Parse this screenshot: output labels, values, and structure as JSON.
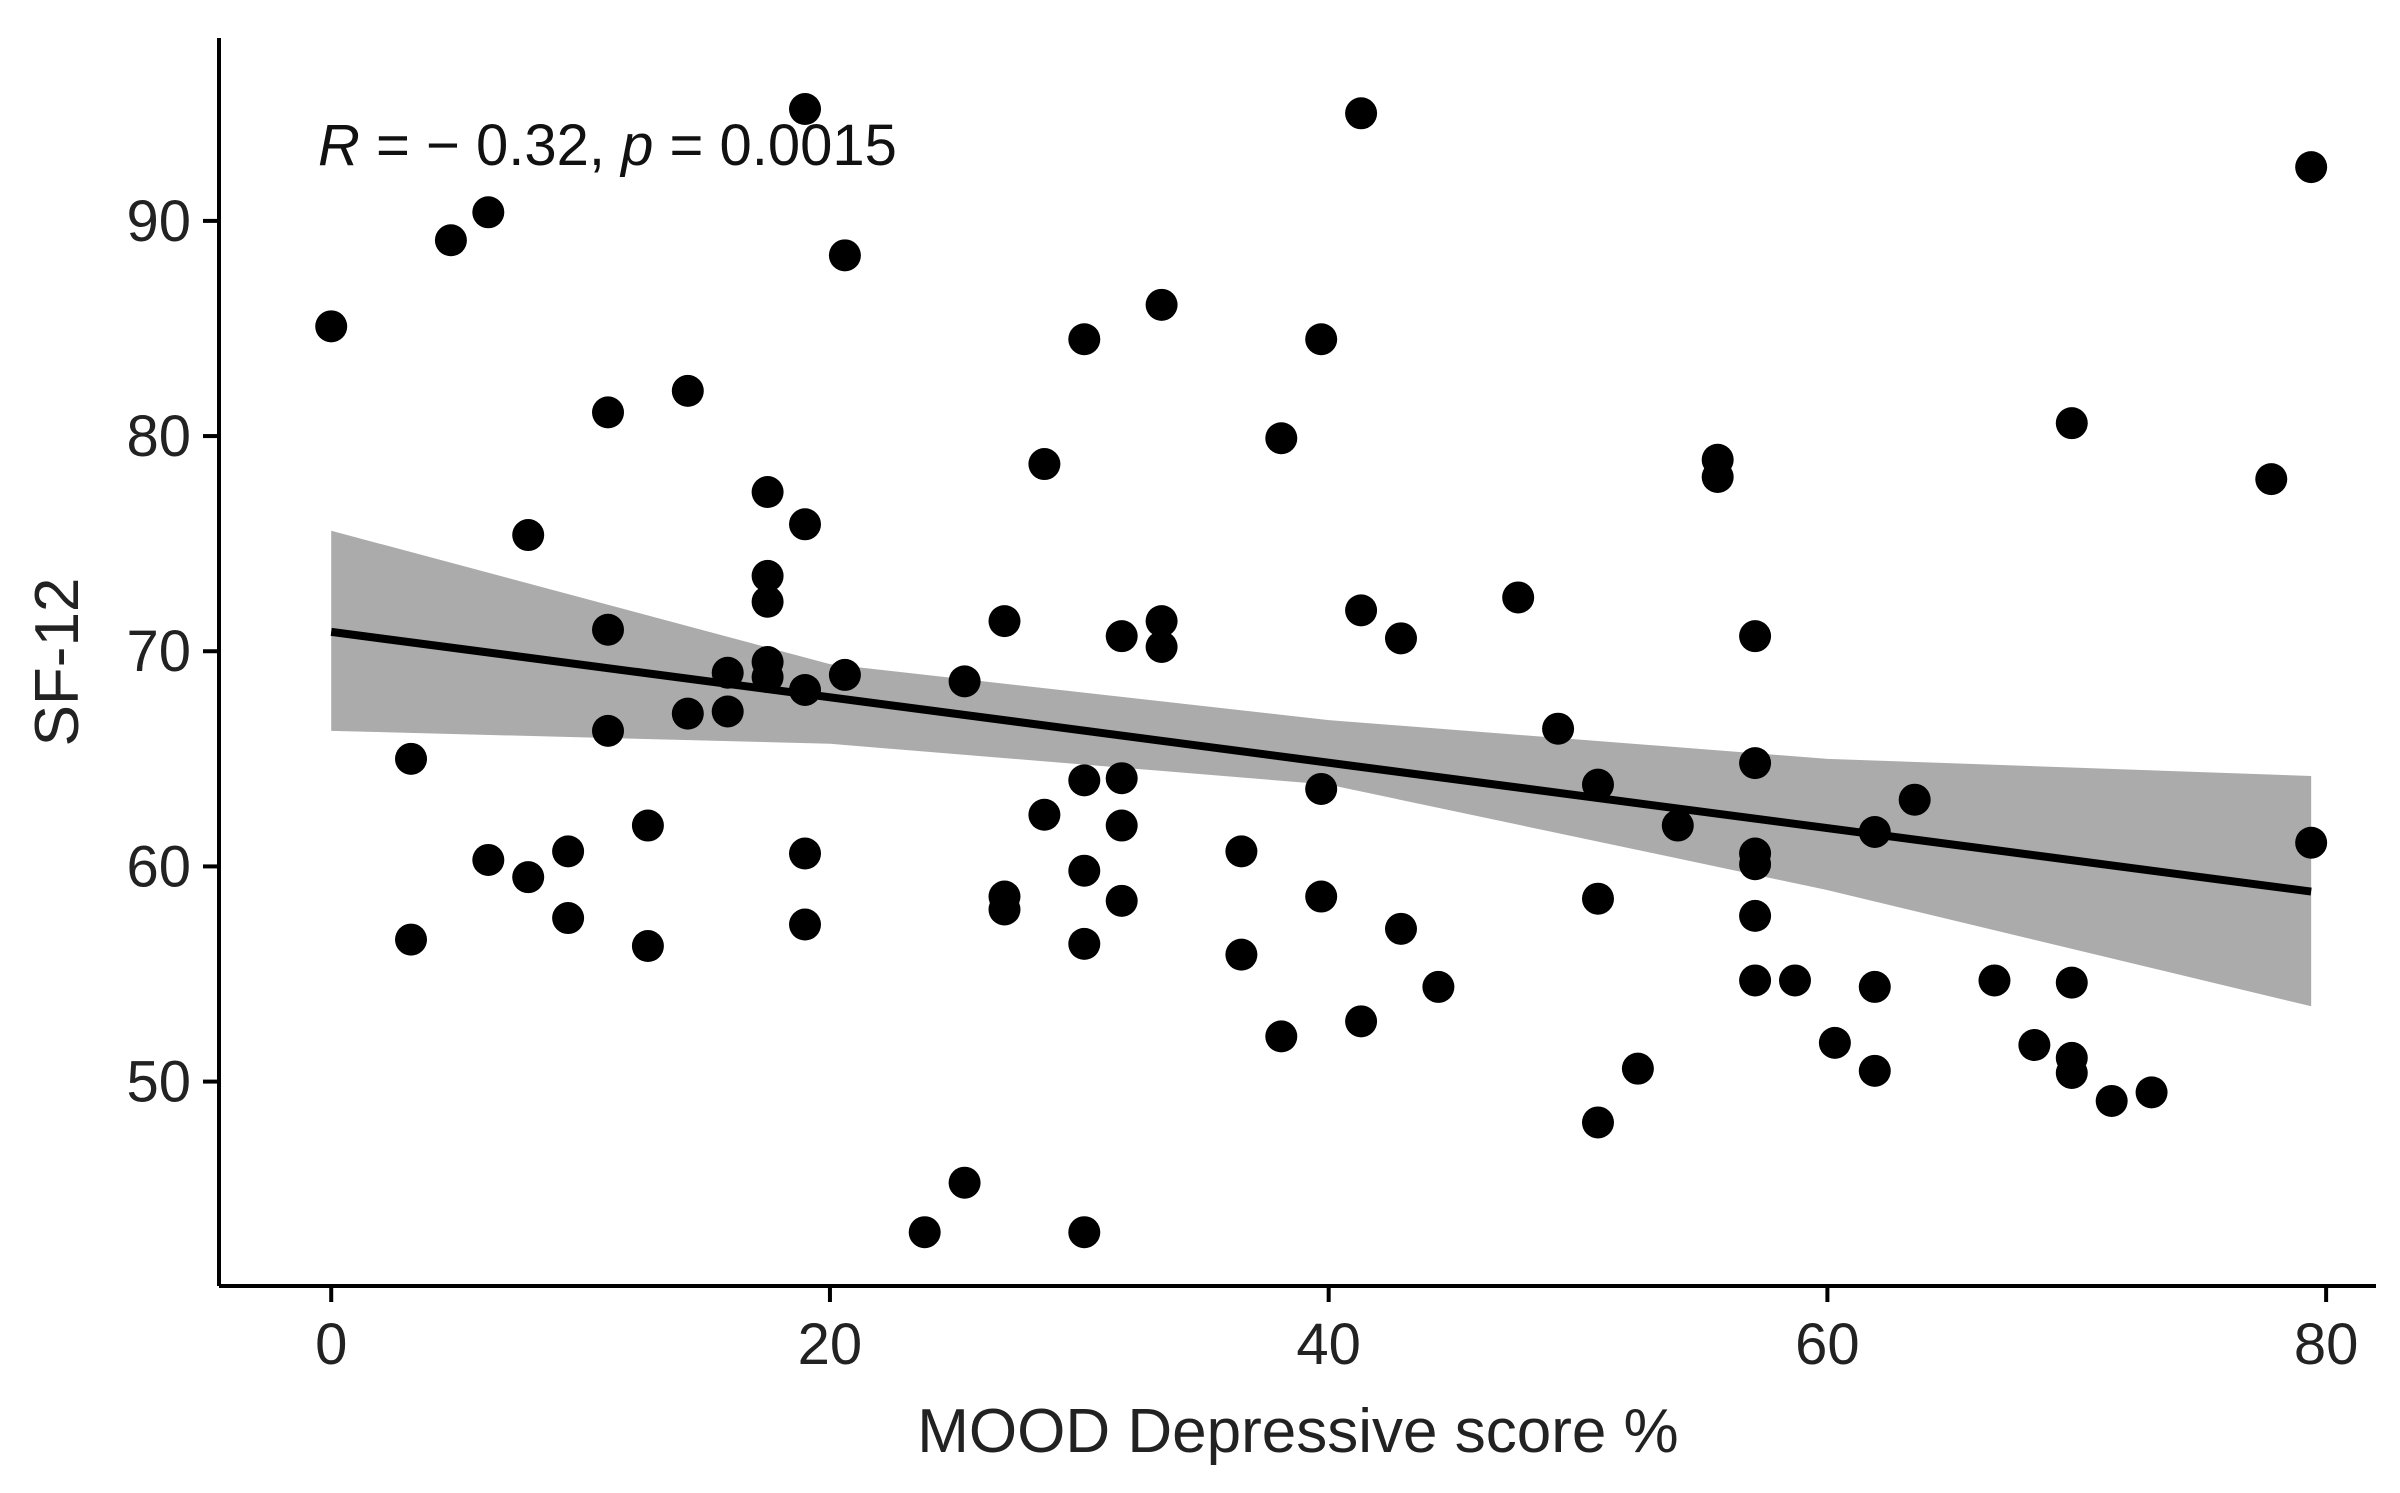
{
  "chart_data": {
    "type": "scatter",
    "xlabel": "MOOD Depressive score %",
    "ylabel": "SF-12",
    "xlim": [
      -4.5,
      82
    ],
    "ylim": [
      40.5,
      98.5
    ],
    "xticks": [
      0,
      20,
      40,
      60,
      80
    ],
    "yticks": [
      50,
      60,
      70,
      80,
      90
    ],
    "grid": false,
    "annotation": {
      "r_symbol": "R",
      "r_text": " = − 0.32, ",
      "p_symbol": "p",
      "p_text": " = 0.0015"
    },
    "regression": {
      "x0": 0,
      "x1": 79.4,
      "slope": -0.152,
      "intercept": 70.9,
      "ci_lower": [
        [
          0,
          66.3
        ],
        [
          20,
          65.7
        ],
        [
          40,
          63.8
        ],
        [
          60,
          58.9
        ],
        [
          79.4,
          53.5
        ]
      ],
      "ci_upper": [
        [
          0,
          75.6
        ],
        [
          20,
          69.4
        ],
        [
          40,
          66.8
        ],
        [
          60,
          65.0
        ],
        [
          79.4,
          64.2
        ]
      ],
      "line_color": "#000000",
      "band_color": "#ababab"
    },
    "points": [
      {
        "x": 0,
        "y": 85.1
      },
      {
        "x": 3.2,
        "y": 65.0
      },
      {
        "x": 3.2,
        "y": 56.6
      },
      {
        "x": 4.8,
        "y": 89.1
      },
      {
        "x": 6.3,
        "y": 90.4
      },
      {
        "x": 6.3,
        "y": 60.3
      },
      {
        "x": 7.9,
        "y": 75.4
      },
      {
        "x": 7.9,
        "y": 59.5
      },
      {
        "x": 9.5,
        "y": 60.7
      },
      {
        "x": 9.5,
        "y": 57.6
      },
      {
        "x": 11.1,
        "y": 81.1
      },
      {
        "x": 11.1,
        "y": 71.0
      },
      {
        "x": 11.1,
        "y": 66.3
      },
      {
        "x": 12.7,
        "y": 61.9
      },
      {
        "x": 12.7,
        "y": 56.3
      },
      {
        "x": 14.3,
        "y": 82.1
      },
      {
        "x": 14.3,
        "y": 67.1
      },
      {
        "x": 15.9,
        "y": 69.0
      },
      {
        "x": 15.9,
        "y": 67.2
      },
      {
        "x": 17.5,
        "y": 77.4
      },
      {
        "x": 17.5,
        "y": 73.5
      },
      {
        "x": 17.5,
        "y": 72.3
      },
      {
        "x": 17.5,
        "y": 69.5
      },
      {
        "x": 17.5,
        "y": 68.8
      },
      {
        "x": 19.0,
        "y": 95.2
      },
      {
        "x": 19.0,
        "y": 75.9
      },
      {
        "x": 19.0,
        "y": 68.2
      },
      {
        "x": 19.0,
        "y": 60.6
      },
      {
        "x": 19.0,
        "y": 57.3
      },
      {
        "x": 20.6,
        "y": 88.4
      },
      {
        "x": 20.6,
        "y": 68.9
      },
      {
        "x": 23.8,
        "y": 43.0
      },
      {
        "x": 25.4,
        "y": 68.6
      },
      {
        "x": 25.4,
        "y": 45.3
      },
      {
        "x": 27.0,
        "y": 71.4
      },
      {
        "x": 27.0,
        "y": 58.6
      },
      {
        "x": 27.0,
        "y": 58.0
      },
      {
        "x": 28.6,
        "y": 78.7
      },
      {
        "x": 28.6,
        "y": 62.4
      },
      {
        "x": 30.2,
        "y": 84.5
      },
      {
        "x": 30.2,
        "y": 64.0
      },
      {
        "x": 30.2,
        "y": 59.8
      },
      {
        "x": 30.2,
        "y": 56.4
      },
      {
        "x": 30.2,
        "y": 43.0
      },
      {
        "x": 31.7,
        "y": 70.7
      },
      {
        "x": 31.7,
        "y": 64.1
      },
      {
        "x": 31.7,
        "y": 61.9
      },
      {
        "x": 31.7,
        "y": 58.4
      },
      {
        "x": 33.3,
        "y": 86.1
      },
      {
        "x": 33.3,
        "y": 71.4
      },
      {
        "x": 33.3,
        "y": 70.2
      },
      {
        "x": 36.5,
        "y": 60.7
      },
      {
        "x": 36.5,
        "y": 55.9
      },
      {
        "x": 38.1,
        "y": 79.9
      },
      {
        "x": 38.1,
        "y": 52.1
      },
      {
        "x": 39.7,
        "y": 84.5
      },
      {
        "x": 39.7,
        "y": 63.6
      },
      {
        "x": 39.7,
        "y": 58.6
      },
      {
        "x": 41.3,
        "y": 95.0
      },
      {
        "x": 41.3,
        "y": 71.9
      },
      {
        "x": 41.3,
        "y": 52.8
      },
      {
        "x": 42.9,
        "y": 70.6
      },
      {
        "x": 42.9,
        "y": 57.1
      },
      {
        "x": 44.4,
        "y": 54.4
      },
      {
        "x": 47.6,
        "y": 72.5
      },
      {
        "x": 49.2,
        "y": 66.4
      },
      {
        "x": 50.8,
        "y": 63.8
      },
      {
        "x": 50.8,
        "y": 58.5
      },
      {
        "x": 50.8,
        "y": 48.1
      },
      {
        "x": 52.4,
        "y": 50.6
      },
      {
        "x": 54.0,
        "y": 61.9
      },
      {
        "x": 55.6,
        "y": 78.9
      },
      {
        "x": 55.6,
        "y": 78.1
      },
      {
        "x": 57.1,
        "y": 70.7
      },
      {
        "x": 57.1,
        "y": 64.8
      },
      {
        "x": 57.1,
        "y": 60.6
      },
      {
        "x": 57.1,
        "y": 60.1
      },
      {
        "x": 57.1,
        "y": 57.7
      },
      {
        "x": 57.1,
        "y": 54.7
      },
      {
        "x": 58.7,
        "y": 54.7
      },
      {
        "x": 60.3,
        "y": 51.8
      },
      {
        "x": 61.9,
        "y": 61.6
      },
      {
        "x": 61.9,
        "y": 54.4
      },
      {
        "x": 61.9,
        "y": 50.5
      },
      {
        "x": 63.5,
        "y": 63.1
      },
      {
        "x": 66.7,
        "y": 54.7
      },
      {
        "x": 68.3,
        "y": 51.7
      },
      {
        "x": 69.8,
        "y": 80.6
      },
      {
        "x": 69.8,
        "y": 54.6
      },
      {
        "x": 69.8,
        "y": 51.1
      },
      {
        "x": 69.8,
        "y": 50.4
      },
      {
        "x": 71.4,
        "y": 49.1
      },
      {
        "x": 73.0,
        "y": 49.5
      },
      {
        "x": 77.8,
        "y": 78.0
      },
      {
        "x": 79.4,
        "y": 92.5
      },
      {
        "x": 79.4,
        "y": 61.1
      }
    ]
  }
}
